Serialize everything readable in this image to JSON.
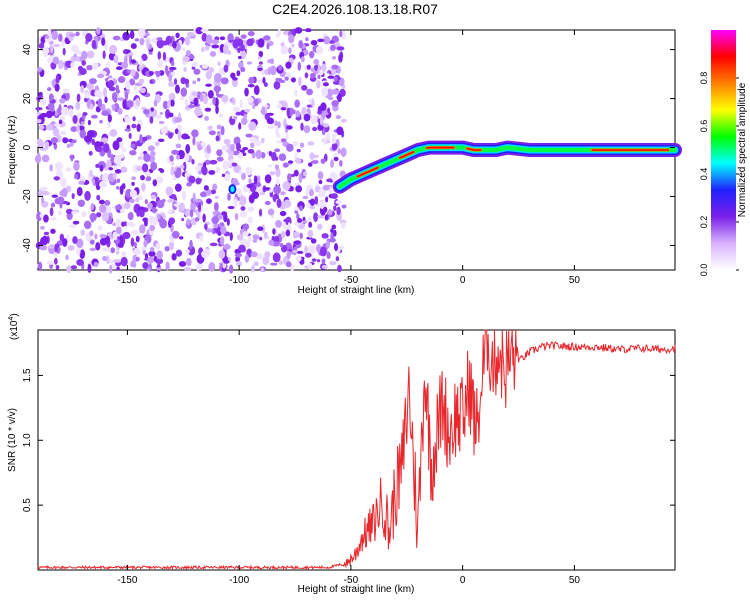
{
  "title": "C2E4.2026.108.13.18.R07",
  "colors": {
    "snr_line": "#e8262b",
    "scatter_purple": "#7a1fe8",
    "axis": "#000000"
  },
  "chart_data": [
    {
      "type": "heatmap",
      "xlabel": "Height of straight line (km)",
      "ylabel": "Frequency (Hz)",
      "xlim": [
        -190,
        95
      ],
      "ylim": [
        -50,
        48
      ],
      "x_ticks": [
        "-150",
        "-100",
        "-50",
        "0",
        "50"
      ],
      "y_ticks": [
        "40",
        "20",
        "0",
        "-20",
        "-40"
      ],
      "noise_region_x": [
        -190,
        -53
      ],
      "trace": {
        "x": [
          -55,
          -50,
          -45,
          -40,
          -35,
          -30,
          -25,
          -20,
          -15,
          -10,
          -5,
          0,
          5,
          10,
          15,
          20,
          30,
          40,
          50,
          60,
          70,
          80,
          95
        ],
        "y": [
          -16,
          -13,
          -11,
          -9,
          -7,
          -5,
          -3,
          -1,
          0,
          0,
          0,
          0,
          -1,
          -1,
          -1,
          0,
          -1,
          -1,
          -1,
          -1,
          -1,
          -1,
          -1
        ],
        "peak_segments_x": [
          [
            -47,
            -38
          ],
          [
            -28,
            -22
          ],
          [
            -16,
            -4
          ],
          [
            2,
            8
          ],
          [
            58,
            92
          ]
        ]
      },
      "colorbar": {
        "label": "Normalized spectral amplitude",
        "range": [
          0,
          1
        ],
        "ticks": [
          "0.0",
          "0.2",
          "0.4",
          "0.6",
          "0.8"
        ],
        "colormap": [
          "#ffffff",
          "#d9b3ff",
          "#7a1fe8",
          "#2020ff",
          "#00ffff",
          "#00ff00",
          "#ffff00",
          "#ff8000",
          "#ff0000",
          "#ff00ff"
        ]
      },
      "grid": false
    },
    {
      "type": "line",
      "xlabel": "Height of straight line (km)",
      "ylabel": "SNR (10 * v/v)",
      "y_multiplier": "(x10",
      "y_multiplier_exp": "4",
      "xlim": [
        -190,
        95
      ],
      "ylim": [
        0,
        1.85
      ],
      "x_ticks": [
        "-150",
        "-100",
        "-50",
        "0",
        "50"
      ],
      "y_ticks": [
        "1.5",
        "1.0",
        "0.5"
      ],
      "series": [
        {
          "x": [
            -190,
            -100,
            -60,
            -52,
            -48,
            -45,
            -40,
            -36,
            -33,
            -30,
            -27,
            -24,
            -20,
            -17,
            -14,
            -12,
            -9,
            -6,
            -3,
            0,
            3,
            6,
            9,
            11,
            13,
            16,
            19,
            22,
            26,
            30,
            35,
            40,
            50,
            60,
            70,
            80,
            90,
            95
          ],
          "y": [
            0.02,
            0.02,
            0.02,
            0.05,
            0.12,
            0.25,
            0.35,
            0.55,
            0.3,
            0.6,
            0.8,
            1.4,
            0.3,
            1.55,
            0.8,
            1.0,
            1.3,
            1.05,
            1.2,
            1.15,
            1.45,
            1.05,
            1.5,
            1.85,
            1.6,
            1.7,
            1.55,
            1.65,
            1.62,
            1.68,
            1.72,
            1.73,
            1.72,
            1.72,
            1.7,
            1.71,
            1.7,
            1.71
          ]
        }
      ],
      "grid": false
    }
  ]
}
